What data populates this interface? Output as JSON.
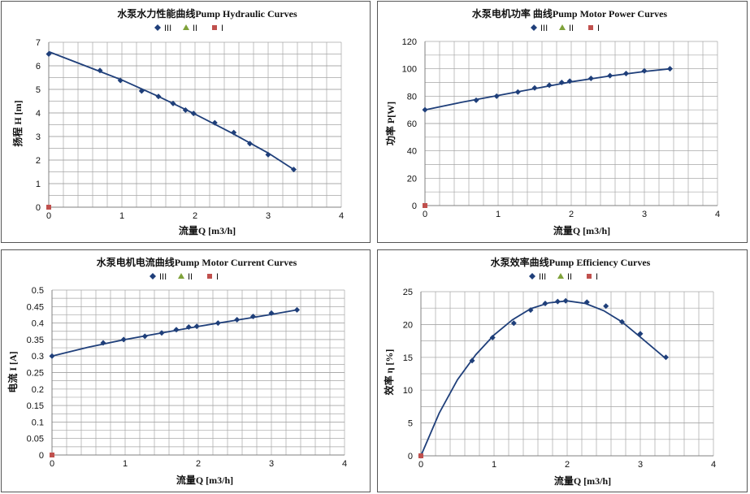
{
  "legend_names": [
    "III",
    "II",
    "I"
  ],
  "colors": {
    "series_III": "#1F3F7A",
    "series_II": "#7FA23A",
    "series_I": "#C0504D",
    "grid": "#A6A6A6",
    "axis": "#808080"
  },
  "chart_data": [
    {
      "id": "hydraulic",
      "type": "scatter",
      "title": "水泵水力性能曲线Pump Hydraulic Curves",
      "xlabel": "流量Q [m3/h]",
      "ylabel": "扬程 H [m]",
      "xlim": [
        0,
        4
      ],
      "ylim": [
        0,
        7
      ],
      "xticks": [
        0,
        1,
        2,
        3,
        4
      ],
      "yticks": [
        0,
        1,
        2,
        3,
        4,
        5,
        6,
        7
      ],
      "grid": true,
      "legend": "top",
      "series": [
        {
          "name": "III",
          "x": [
            0,
            0.7,
            0.98,
            1.27,
            1.5,
            1.7,
            1.87,
            1.98,
            2.27,
            2.53,
            2.75,
            3.0,
            3.35
          ],
          "y": [
            6.5,
            5.8,
            5.38,
            4.93,
            4.7,
            4.4,
            4.12,
            3.98,
            3.58,
            3.17,
            2.7,
            2.23,
            1.6
          ]
        },
        {
          "name": "II",
          "x": [],
          "y": []
        },
        {
          "name": "I",
          "x": [
            0
          ],
          "y": [
            0
          ]
        }
      ],
      "trend": {
        "x": [
          0,
          0.5,
          1,
          1.5,
          2,
          2.5,
          3,
          3.35
        ],
        "y": [
          6.6,
          6.0,
          5.4,
          4.7,
          3.95,
          3.15,
          2.3,
          1.6
        ]
      }
    },
    {
      "id": "power",
      "type": "scatter",
      "title": "水泵电机功率 曲线Pump Motor Power Curves",
      "xlabel": "流量Q [m3/h]",
      "ylabel": "功率 P[W]",
      "xlim": [
        0,
        4
      ],
      "ylim": [
        0,
        120
      ],
      "xticks": [
        0,
        1,
        2,
        3,
        4
      ],
      "yticks": [
        0,
        20,
        40,
        60,
        80,
        100,
        120
      ],
      "grid": true,
      "legend": "top",
      "series": [
        {
          "name": "III",
          "x": [
            0,
            0.7,
            0.98,
            1.27,
            1.5,
            1.7,
            1.87,
            1.98,
            2.27,
            2.53,
            2.75,
            3.0,
            3.35
          ],
          "y": [
            70,
            77,
            80,
            83,
            86,
            88,
            90,
            91,
            93,
            95,
            96.5,
            98.5,
            100
          ]
        },
        {
          "name": "II",
          "x": [],
          "y": []
        },
        {
          "name": "I",
          "x": [
            0
          ],
          "y": [
            0
          ]
        }
      ],
      "trend": {
        "x": [
          0,
          0.5,
          1,
          1.5,
          2,
          2.5,
          3,
          3.35
        ],
        "y": [
          70,
          75.5,
          80.5,
          85.5,
          90.5,
          94.5,
          98,
          100
        ]
      }
    },
    {
      "id": "current",
      "type": "scatter",
      "title": "水泵电机电流曲线Pump Motor Current Curves",
      "xlabel": "流量Q [m3/h]",
      "ylabel": "电流 I [A]",
      "xlim": [
        0,
        4
      ],
      "ylim": [
        0,
        0.5
      ],
      "xticks": [
        0,
        1,
        2,
        3,
        4
      ],
      "yticks": [
        0,
        0.05,
        0.1,
        0.15,
        0.2,
        0.25,
        0.3,
        0.35,
        0.4,
        0.45,
        0.5
      ],
      "grid": true,
      "legend": "top",
      "series": [
        {
          "name": "III",
          "x": [
            0,
            0.7,
            0.98,
            1.27,
            1.5,
            1.7,
            1.87,
            1.98,
            2.27,
            2.53,
            2.75,
            3.0,
            3.35
          ],
          "y": [
            0.3,
            0.34,
            0.35,
            0.36,
            0.37,
            0.38,
            0.388,
            0.39,
            0.4,
            0.41,
            0.42,
            0.43,
            0.44
          ]
        },
        {
          "name": "II",
          "x": [],
          "y": []
        },
        {
          "name": "I",
          "x": [
            0
          ],
          "y": [
            0
          ]
        }
      ],
      "trend": {
        "x": [
          0,
          0.5,
          1,
          1.5,
          2,
          2.5,
          3,
          3.35
        ],
        "y": [
          0.3,
          0.327,
          0.35,
          0.37,
          0.39,
          0.408,
          0.426,
          0.44
        ]
      }
    },
    {
      "id": "efficiency",
      "type": "scatter",
      "title": "水泵效率曲线Pump Efficiency Curves",
      "xlabel": "流量Q [m3/h]",
      "ylabel": "效率 η [%]",
      "xlim": [
        0,
        4
      ],
      "ylim": [
        0,
        25
      ],
      "xticks": [
        0,
        1,
        2,
        3,
        4
      ],
      "yticks": [
        0,
        5,
        10,
        15,
        20,
        25
      ],
      "grid": true,
      "legend": "top",
      "series": [
        {
          "name": "III",
          "x": [
            0,
            0.7,
            0.98,
            1.27,
            1.5,
            1.7,
            1.87,
            1.98,
            2.27,
            2.53,
            2.75,
            3.0,
            3.35
          ],
          "y": [
            0,
            14.5,
            18,
            20.2,
            22.2,
            23.2,
            23.5,
            23.6,
            23.4,
            22.8,
            20.4,
            18.6,
            15
          ]
        },
        {
          "name": "II",
          "x": [],
          "y": []
        },
        {
          "name": "I",
          "x": [
            0
          ],
          "y": [
            0
          ]
        }
      ],
      "trend": {
        "x": [
          0,
          0.25,
          0.5,
          0.75,
          1,
          1.25,
          1.5,
          1.75,
          2,
          2.25,
          2.5,
          2.75,
          3,
          3.35
        ],
        "y": [
          0,
          6.5,
          11.6,
          15.4,
          18.4,
          20.7,
          22.4,
          23.3,
          23.6,
          23.2,
          22.1,
          20.4,
          18.1,
          14.8
        ]
      }
    }
  ]
}
